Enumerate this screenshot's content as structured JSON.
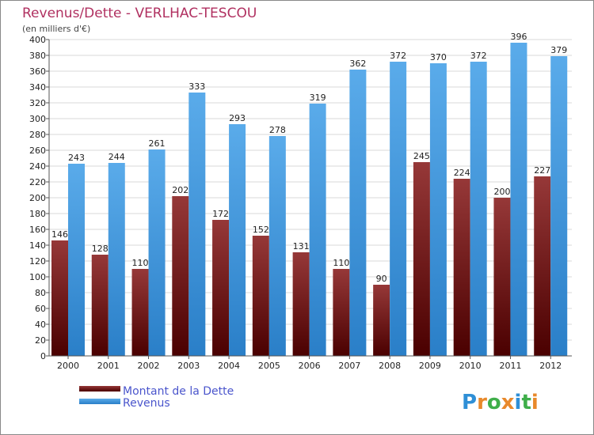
{
  "colors": {
    "background": "#ffffff",
    "plot_bg": "#ffffff",
    "grid": "#d9d9d9",
    "title": "#b03060",
    "legend_text": "#4a55cc",
    "series_debt_top": "#963838",
    "series_debt_bottom": "#4a0000",
    "series_revenue_top": "#5aabea",
    "series_revenue_bottom": "#2a7fc8",
    "border": "#888888"
  },
  "logo": {
    "text": "Proxiti",
    "letters": [
      "P",
      "r",
      "o",
      "x",
      "i",
      "t",
      "i"
    ],
    "letter_colors": [
      "#2f8fd6",
      "#e8892b",
      "#3fae4a",
      "#e8892b",
      "#2f8fd6",
      "#3fae4a",
      "#e8892b"
    ]
  },
  "chart_data": {
    "type": "bar",
    "title": "Revenus/Dette - VERLHAC-TESCOU",
    "subtitle": "(en milliers d'€)",
    "xlabel": "",
    "ylabel": "",
    "ylim": [
      0,
      400
    ],
    "ytick_step": 20,
    "grid": true,
    "legend_position": "bottom-left",
    "categories": [
      "2000",
      "2001",
      "2002",
      "2003",
      "2004",
      "2005",
      "2006",
      "2007",
      "2008",
      "2009",
      "2010",
      "2011",
      "2012"
    ],
    "series": [
      {
        "name": "Montant de la Dette",
        "values": [
          146,
          128,
          110,
          202,
          172,
          152,
          131,
          110,
          90,
          245,
          224,
          200,
          227
        ]
      },
      {
        "name": "Revenus",
        "values": [
          243,
          244,
          261,
          333,
          293,
          278,
          319,
          362,
          372,
          370,
          372,
          396,
          379
        ]
      }
    ]
  }
}
